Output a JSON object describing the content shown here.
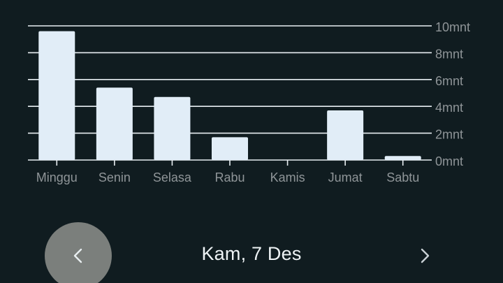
{
  "chart_data": {
    "type": "bar",
    "categories": [
      "Minggu",
      "Senin",
      "Selasa",
      "Rabu",
      "Kamis",
      "Jumat",
      "Sabtu"
    ],
    "values": [
      9.6,
      5.4,
      4.7,
      1.7,
      0,
      3.7,
      0.3
    ],
    "y_tick_labels": [
      "0mnt",
      "2mnt",
      "4mnt",
      "6mnt",
      "8mnt",
      "10mnt"
    ],
    "y_ticks": [
      0,
      2,
      4,
      6,
      8,
      10
    ],
    "ylim": [
      0,
      10
    ],
    "grid": true,
    "y_axis_position": "right",
    "colors": {
      "bar": "#e1edf7",
      "grid": "#e8eef2",
      "tick_label": "#8f9598",
      "background": "#101c20"
    }
  },
  "footer": {
    "date": "Kam, 7 Des",
    "prev_icon": "chevron-left-icon",
    "next_icon": "chevron-right-icon"
  }
}
